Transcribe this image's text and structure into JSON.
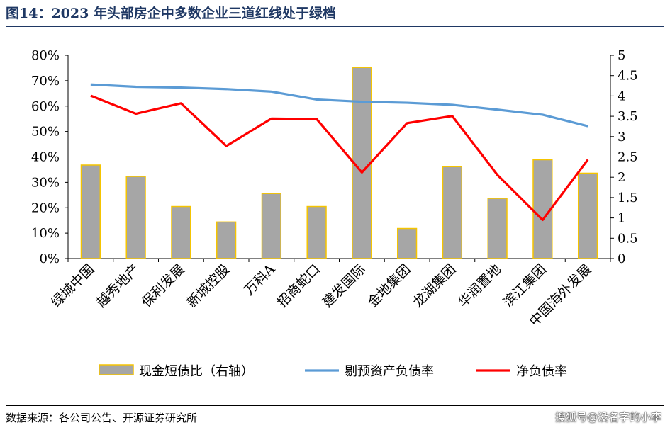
{
  "title": "图14：2023 年头部房企中多数企业三道红线处于绿档",
  "source": "数据来源：各公司公告、开源证券研究所",
  "watermark": "搜狐号@没名字的小李",
  "colors": {
    "title": "#1f3864",
    "bar_fill": "#a6a6a6",
    "bar_border": "#f5c400",
    "line_blue": "#5b9bd5",
    "line_red": "#ff0000"
  },
  "chart_data": {
    "type": "bar+line",
    "categories": [
      "绿城中国",
      "越秀地产",
      "保利发展",
      "新城控股",
      "万科A",
      "招商蛇口",
      "建发国际",
      "金地集团",
      "龙湖集团",
      "华润置地",
      "滨江集团",
      "中国海外发展"
    ],
    "left_axis": {
      "ylim": [
        0,
        0.8
      ],
      "ticks": [
        "0%",
        "10%",
        "20%",
        "30%",
        "40%",
        "50%",
        "60%",
        "70%",
        "80%"
      ]
    },
    "right_axis": {
      "ylim": [
        0,
        5
      ],
      "ticks": [
        "0",
        "0.5",
        "1",
        "1.5",
        "2",
        "2.5",
        "3",
        "3.5",
        "4",
        "4.5",
        "5"
      ]
    },
    "series": [
      {
        "name": "现金短债比（右轴）",
        "type": "bar",
        "axis": "right",
        "values": [
          2.3,
          2.02,
          1.28,
          0.9,
          1.6,
          1.28,
          4.7,
          0.74,
          2.26,
          1.48,
          2.43,
          2.1
        ]
      },
      {
        "name": "剔预资产负债率",
        "type": "line",
        "axis": "left",
        "values": [
          0.685,
          0.676,
          0.673,
          0.667,
          0.657,
          0.626,
          0.617,
          0.613,
          0.605,
          0.586,
          0.566,
          0.521
        ]
      },
      {
        "name": "净负债率",
        "type": "line",
        "axis": "left",
        "values": [
          0.641,
          0.57,
          0.611,
          0.443,
          0.551,
          0.549,
          0.339,
          0.533,
          0.561,
          0.329,
          0.152,
          0.389
        ]
      }
    ],
    "grid": false,
    "legend": "bottom"
  }
}
